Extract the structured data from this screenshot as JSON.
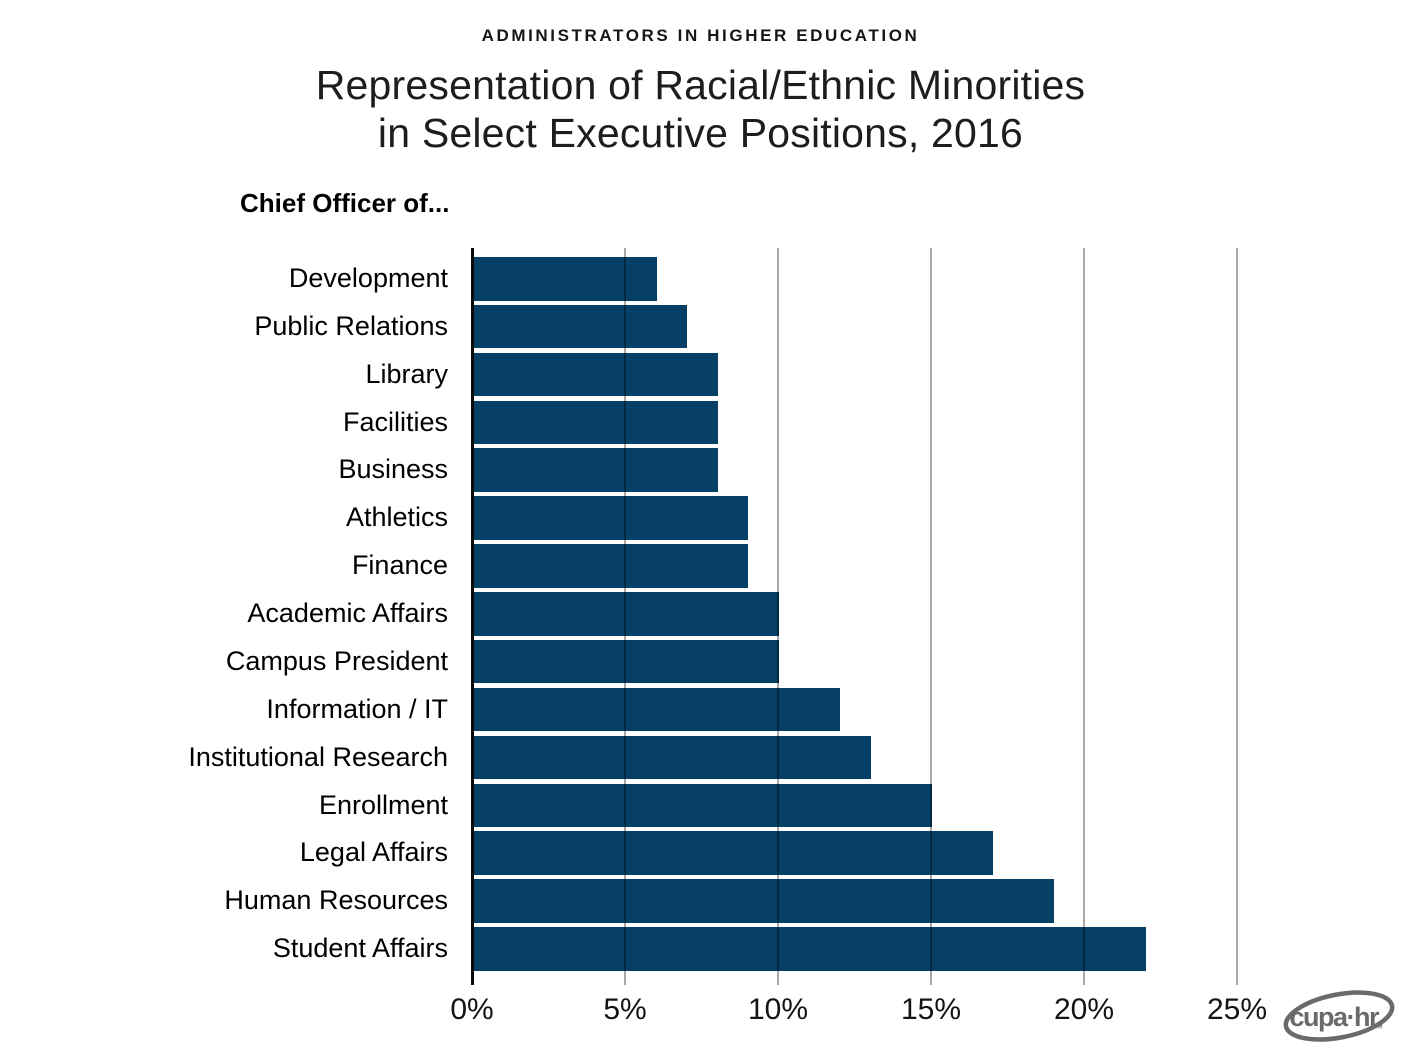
{
  "header": {
    "kicker": "ADMINISTRATORS IN HIGHER EDUCATION",
    "title_line1": "Representation of Racial/Ethnic Minorities",
    "title_line2": "in Select Executive Positions, 2016"
  },
  "chart_data": {
    "type": "bar",
    "orientation": "horizontal",
    "axis_title": "Chief Officer of...",
    "categories": [
      "Development",
      "Public Relations",
      "Library",
      "Facilities",
      "Business",
      "Athletics",
      "Finance",
      "Academic Affairs",
      "Campus President",
      "Information / IT",
      "Institutional Research",
      "Enrollment",
      "Legal Affairs",
      "Human Resources",
      "Student Affairs"
    ],
    "values": [
      6,
      7,
      8,
      8,
      8,
      9,
      9,
      10,
      10,
      12,
      13,
      15,
      17,
      19,
      22
    ],
    "unit": "%",
    "xlim": [
      0,
      25
    ],
    "x_ticks": [
      0,
      5,
      10,
      15,
      20,
      25
    ],
    "x_tick_labels": [
      "0%",
      "5%",
      "10%",
      "15%",
      "20%",
      "25%"
    ],
    "grid": true,
    "legend": false,
    "bar_color": "#064066",
    "gridline_color": "#a6a6a6",
    "axis_color": "#0a0a0a"
  },
  "footer": {
    "logo_text": "cupa·hr.",
    "logo_tm": "™"
  }
}
